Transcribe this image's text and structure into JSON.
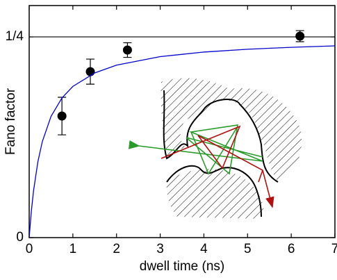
{
  "chart_data": {
    "type": "scatter",
    "xlabel": "dwell time (ns)",
    "ylabel": "Fano factor",
    "xlim": [
      0,
      7
    ],
    "ylim": [
      0,
      0.289
    ],
    "xticks": [
      0,
      1,
      2,
      3,
      4,
      5,
      6,
      7
    ],
    "yticks": [
      0,
      {
        "value": 0.25,
        "label": "1/4"
      }
    ],
    "hline": 0.25,
    "series": [
      {
        "type": "scatter",
        "color": "#000000",
        "x": [
          0.75,
          1.4,
          2.25,
          6.2
        ],
        "values": [
          0.1514,
          0.2067,
          0.2336,
          0.2509
        ],
        "errors": [
          0.0234,
          0.0156,
          0.0091,
          0.0069
        ]
      },
      {
        "type": "line",
        "color": "#0000cc",
        "x": [
          0,
          0.05,
          0.1,
          0.2,
          0.3,
          0.5,
          0.75,
          1,
          1.5,
          2,
          3,
          4,
          5,
          6,
          7
        ],
        "values": [
          0,
          0.0331,
          0.0584,
          0.0947,
          0.1194,
          0.151,
          0.1739,
          0.1883,
          0.2051,
          0.2148,
          0.2254,
          0.2311,
          0.2346,
          0.237,
          0.2388
        ]
      }
    ]
  }
}
